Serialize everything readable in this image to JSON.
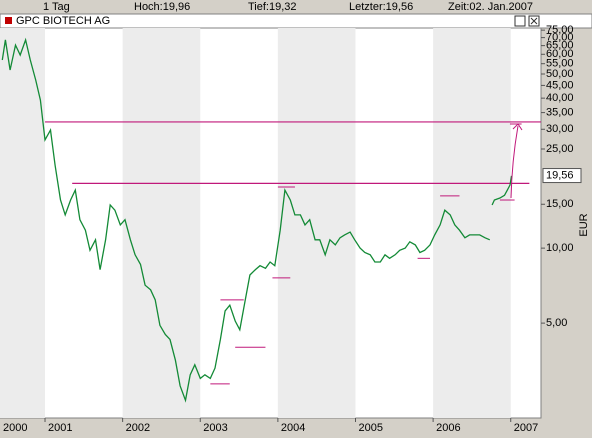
{
  "header": {
    "interval": "1 Tag",
    "high": "Hoch:19,96",
    "low": "Tief:19,32",
    "last": "Letzter:19,56",
    "time": "Zeit:02. Jan.2007"
  },
  "chart_data": {
    "type": "line",
    "title": "GPC BIOTECH AG",
    "y_label": "EUR",
    "log_scale": true,
    "color": "#138a36",
    "x": [
      2000.45,
      2000.49,
      2000.55,
      2000.62,
      2000.68,
      2000.75,
      2000.81,
      2000.88,
      2000.94,
      2001.0,
      2001.07,
      2001.13,
      2001.2,
      2001.26,
      2001.33,
      2001.39,
      2001.45,
      2001.52,
      2001.58,
      2001.65,
      2001.71,
      2001.78,
      2001.84,
      2001.9,
      2001.97,
      2002.03,
      2002.1,
      2002.16,
      2002.23,
      2002.29,
      2002.36,
      2002.42,
      2002.48,
      2002.55,
      2002.61,
      2002.68,
      2002.74,
      2002.81,
      2002.87,
      2002.93,
      2003.0,
      2003.06,
      2003.13,
      2003.19,
      2003.26,
      2003.32,
      2003.38,
      2003.45,
      2003.51,
      2003.58,
      2003.64,
      2003.71,
      2003.77,
      2003.84,
      2003.9,
      2003.96,
      2004.03,
      2004.09,
      2004.16,
      2004.22,
      2004.29,
      2004.35,
      2004.41,
      2004.48,
      2004.54,
      2004.61,
      2004.67,
      2004.74,
      2004.8,
      2004.86,
      2004.93,
      2004.99,
      2005.06,
      2005.12,
      2005.19,
      2005.25,
      2005.32,
      2005.38,
      2005.44,
      2005.51,
      2005.57,
      2005.64,
      2005.7,
      2005.77,
      2005.83,
      2005.89,
      2005.96,
      2006.02,
      2006.09,
      2006.15,
      2006.22,
      2006.28,
      2006.34,
      2006.41,
      2006.47,
      2006.54,
      2006.6,
      2006.67,
      2006.73,
      2006.75,
      2006.76,
      2006.79,
      2006.86,
      2006.92,
      2006.99,
      2007.01
    ],
    "series": [
      {
        "name": "GPC BIOTECH AG",
        "color": "#138a36",
        "values": [
          56.9,
          68.5,
          51.9,
          65.3,
          59.6,
          68.5,
          56.9,
          47.3,
          39.3,
          27.2,
          29.8,
          21.5,
          15.6,
          13.6,
          15.6,
          17.1,
          13.0,
          11.8,
          9.8,
          10.8,
          8.2,
          10.8,
          14.9,
          14.2,
          12.4,
          13.0,
          10.8,
          9.4,
          8.6,
          7.1,
          6.8,
          6.2,
          4.9,
          4.5,
          4.3,
          3.55,
          2.8,
          2.45,
          3.1,
          3.4,
          3.0,
          3.1,
          3.0,
          3.3,
          4.3,
          5.6,
          5.9,
          5.1,
          4.7,
          6.2,
          7.8,
          8.2,
          8.5,
          8.3,
          8.8,
          8.5,
          11.8,
          17.1,
          15.6,
          13.6,
          13.6,
          12.4,
          13.0,
          10.8,
          10.8,
          9.4,
          10.8,
          10.3,
          11.0,
          11.3,
          11.6,
          10.8,
          10.0,
          9.6,
          9.4,
          8.8,
          8.8,
          9.4,
          9.1,
          9.4,
          9.8,
          10.0,
          10.6,
          10.3,
          9.6,
          9.8,
          10.3,
          11.3,
          12.4,
          14.2,
          13.6,
          12.4,
          11.8,
          11.0,
          11.3,
          11.3,
          11.3,
          11.0,
          10.8,
          null,
          14.9,
          15.6,
          15.9,
          16.3,
          17.9,
          19.5
        ]
      }
    ],
    "hlines": [
      {
        "value": 32.1,
        "from": 2001.0,
        "to": 2007.4
      },
      {
        "value": 18.2,
        "from": 2001.35,
        "to": 2007.24
      }
    ],
    "segments": [
      {
        "value": 6.2,
        "from": 2003.26,
        "to": 2003.56
      },
      {
        "value": 4.0,
        "from": 2003.45,
        "to": 2003.84
      },
      {
        "value": 2.85,
        "from": 2003.13,
        "to": 2003.38
      },
      {
        "value": 7.6,
        "from": 2003.93,
        "to": 2004.16
      },
      {
        "value": 17.6,
        "from": 2004.0,
        "to": 2004.22
      },
      {
        "value": 9.1,
        "from": 2005.8,
        "to": 2005.96
      },
      {
        "value": 16.2,
        "from": 2006.09,
        "to": 2006.34
      },
      {
        "value": 15.6,
        "from": 2006.86,
        "to": 2007.05
      },
      {
        "value": 31.5,
        "from": 2006.99,
        "to": 2007.14
      }
    ],
    "last_value": 19.56,
    "last_value_label": "19,56",
    "xlim": [
      2000.42,
      2007.39
    ],
    "xticks": [
      2000,
      2001,
      2002,
      2003,
      2004,
      2005,
      2006,
      2007
    ],
    "ylim": [
      2.08,
      76.5
    ],
    "yticks": [
      {
        "value": 5,
        "label": "5,00"
      },
      {
        "value": 10,
        "label": "10,00"
      },
      {
        "value": 15,
        "label": "15,00"
      },
      {
        "value": 25,
        "label": "25,00"
      },
      {
        "value": 30,
        "label": "30,00"
      },
      {
        "value": 35,
        "label": "35,00"
      },
      {
        "value": 40,
        "label": "40,00"
      },
      {
        "value": 45,
        "label": "45,00"
      },
      {
        "value": 50,
        "label": "50,00"
      },
      {
        "value": 55,
        "label": "55,00"
      },
      {
        "value": 60,
        "label": "60,00"
      },
      {
        "value": 65,
        "label": "65,00"
      },
      {
        "value": 70,
        "label": "70,00"
      },
      {
        "value": 75,
        "label": "75,00"
      }
    ],
    "grid": false,
    "line_color": "#c0187a"
  }
}
